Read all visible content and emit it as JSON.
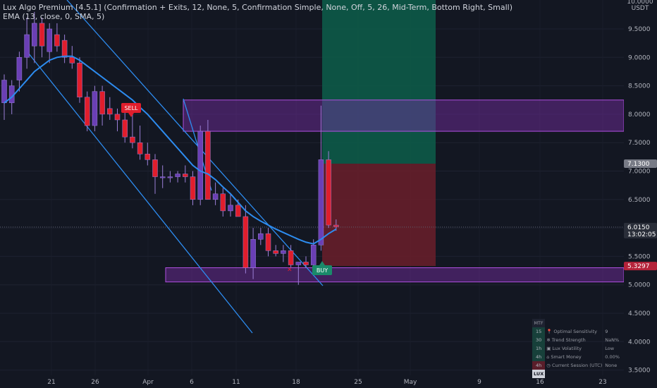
{
  "legend": {
    "line1": "Lux Algo Premium [4.5.1] (Confirmation + Exits, 12, None, 5, Confirmation Simple, None, Off, 5, 26, Mid-Term, Bottom Right, Small)",
    "line2": "EMA (13, close, 0, SMA, 5)"
  },
  "price_axis": {
    "currency": "USDT",
    "top_partial": "10.0000",
    "ticks": [
      "9.5000",
      "9.0000",
      "8.5000",
      "8.0000",
      "7.5000",
      "7.0000",
      "6.5000",
      "6.0000",
      "5.5000",
      "5.0000",
      "4.5000",
      "4.0000",
      "3.5000"
    ],
    "target_label": "7.1300",
    "current_price": "6.0150",
    "countdown": "13:02:05",
    "stop_label": "5.3297"
  },
  "time_axis": {
    "ticks": [
      "21",
      "26",
      "Apr",
      "6",
      "11",
      "18",
      "25",
      "May",
      "9",
      "16",
      "23"
    ]
  },
  "signals": {
    "sell": "SELL",
    "buy": "BUY"
  },
  "colors": {
    "background": "#131722",
    "bull_body": "#6a3fb5",
    "bear_body": "#e01e2c",
    "ema_line": "#2d8cf0",
    "channel_line": "#2d8cf0",
    "zone_fill": "#7b2fa8",
    "target_fill": "#0d5e4a",
    "stop_fill": "#6b1f2a"
  },
  "dashboard": {
    "header": "MTF",
    "rows": [
      {
        "tf": "15",
        "label": "Optimal Sensitivity",
        "value": "9",
        "icon": "pin-icon"
      },
      {
        "tf": "30",
        "label": "Trend Strength",
        "value": "NaN%",
        "icon": "snowflake-icon"
      },
      {
        "tf": "1h",
        "label": "Lux Volatility",
        "value": "Low",
        "icon": "box-icon"
      },
      {
        "tf": "4h",
        "label": "Smart Money",
        "value": "0.00%",
        "icon": "bank-icon"
      },
      {
        "tf": "4h",
        "label": "Current Session (UTC)",
        "value": "None",
        "icon": "clock-icon"
      }
    ],
    "footer": "LUX"
  },
  "chart_data": {
    "type": "candlestick",
    "y_range": [
      3.5,
      10.0
    ],
    "candles": [
      {
        "o": 8.2,
        "h": 8.7,
        "l": 7.9,
        "c": 8.6
      },
      {
        "o": 8.2,
        "h": 8.6,
        "l": 8.0,
        "c": 8.5
      },
      {
        "o": 8.6,
        "h": 9.1,
        "l": 8.4,
        "c": 9.0
      },
      {
        "o": 9.0,
        "h": 9.7,
        "l": 8.8,
        "c": 9.4
      },
      {
        "o": 9.2,
        "h": 9.8,
        "l": 8.9,
        "c": 9.6
      },
      {
        "o": 9.6,
        "h": 9.7,
        "l": 9.0,
        "c": 9.2
      },
      {
        "o": 9.1,
        "h": 9.6,
        "l": 8.9,
        "c": 9.5
      },
      {
        "o": 9.4,
        "h": 9.6,
        "l": 9.1,
        "c": 9.2
      },
      {
        "o": 9.3,
        "h": 9.4,
        "l": 8.9,
        "c": 9.0
      },
      {
        "o": 9.0,
        "h": 9.2,
        "l": 8.8,
        "c": 8.9
      },
      {
        "o": 8.9,
        "h": 9.0,
        "l": 8.2,
        "c": 8.3
      },
      {
        "o": 8.3,
        "h": 8.4,
        "l": 7.7,
        "c": 7.8
      },
      {
        "o": 7.8,
        "h": 8.5,
        "l": 7.7,
        "c": 8.4
      },
      {
        "o": 8.4,
        "h": 8.5,
        "l": 7.8,
        "c": 8.0
      },
      {
        "o": 8.1,
        "h": 8.3,
        "l": 7.9,
        "c": 8.0
      },
      {
        "o": 8.0,
        "h": 8.1,
        "l": 7.7,
        "c": 7.9
      },
      {
        "o": 7.9,
        "h": 8.1,
        "l": 7.5,
        "c": 7.6
      },
      {
        "o": 7.6,
        "h": 8.0,
        "l": 7.4,
        "c": 7.5
      },
      {
        "o": 7.5,
        "h": 7.8,
        "l": 7.2,
        "c": 7.3
      },
      {
        "o": 7.3,
        "h": 7.5,
        "l": 7.1,
        "c": 7.2
      },
      {
        "o": 7.2,
        "h": 7.3,
        "l": 6.6,
        "c": 6.9
      },
      {
        "o": 6.9,
        "h": 7.1,
        "l": 6.7,
        "c": 6.9
      },
      {
        "o": 6.9,
        "h": 7.0,
        "l": 6.8,
        "c": 6.9
      },
      {
        "o": 6.9,
        "h": 7.0,
        "l": 6.8,
        "c": 6.95
      },
      {
        "o": 6.95,
        "h": 7.1,
        "l": 6.8,
        "c": 6.9
      },
      {
        "o": 6.9,
        "h": 7.0,
        "l": 6.4,
        "c": 6.5
      },
      {
        "o": 6.5,
        "h": 7.8,
        "l": 6.4,
        "c": 7.7
      },
      {
        "o": 7.7,
        "h": 7.9,
        "l": 6.5,
        "c": 6.5
      },
      {
        "o": 6.5,
        "h": 6.8,
        "l": 6.4,
        "c": 6.6
      },
      {
        "o": 6.6,
        "h": 6.7,
        "l": 6.2,
        "c": 6.3
      },
      {
        "o": 6.3,
        "h": 6.6,
        "l": 6.2,
        "c": 6.4
      },
      {
        "o": 6.4,
        "h": 6.5,
        "l": 6.2,
        "c": 6.2
      },
      {
        "o": 6.2,
        "h": 6.4,
        "l": 5.2,
        "c": 5.3
      },
      {
        "o": 5.3,
        "h": 6.0,
        "l": 5.1,
        "c": 5.8
      },
      {
        "o": 5.8,
        "h": 6.0,
        "l": 5.7,
        "c": 5.9
      },
      {
        "o": 5.9,
        "h": 6.0,
        "l": 5.5,
        "c": 5.6
      },
      {
        "o": 5.6,
        "h": 5.7,
        "l": 5.5,
        "c": 5.55
      },
      {
        "o": 5.55,
        "h": 5.7,
        "l": 5.4,
        "c": 5.6
      },
      {
        "o": 5.6,
        "h": 5.7,
        "l": 5.3,
        "c": 5.35
      },
      {
        "o": 5.35,
        "h": 5.4,
        "l": 5.0,
        "c": 5.4
      },
      {
        "o": 5.4,
        "h": 5.5,
        "l": 5.3,
        "c": 5.35
      },
      {
        "o": 5.35,
        "h": 5.8,
        "l": 5.3,
        "c": 5.7
      },
      {
        "o": 5.7,
        "h": 8.15,
        "l": 5.6,
        "c": 7.2
      },
      {
        "o": 7.2,
        "h": 7.35,
        "l": 6.0,
        "c": 6.05
      },
      {
        "o": 6.05,
        "h": 6.15,
        "l": 5.95,
        "c": 6.02
      }
    ],
    "ema": [
      8.2,
      8.3,
      8.45,
      8.6,
      8.75,
      8.85,
      8.95,
      9.0,
      9.02,
      9.02,
      8.95,
      8.85,
      8.75,
      8.65,
      8.55,
      8.45,
      8.35,
      8.25,
      8.12,
      8.0,
      7.85,
      7.7,
      7.55,
      7.4,
      7.25,
      7.1,
      7.0,
      6.95,
      6.85,
      6.72,
      6.6,
      6.45,
      6.3,
      6.2,
      6.12,
      6.05,
      5.98,
      5.92,
      5.86,
      5.8,
      5.75,
      5.72,
      5.8,
      5.9,
      5.98
    ],
    "supply_zone": [
      7.7,
      8.25
    ],
    "demand_zone": [
      5.05,
      5.3
    ],
    "target_level": 7.13,
    "entry_level": 6.015,
    "stop_level": 5.3297
  }
}
